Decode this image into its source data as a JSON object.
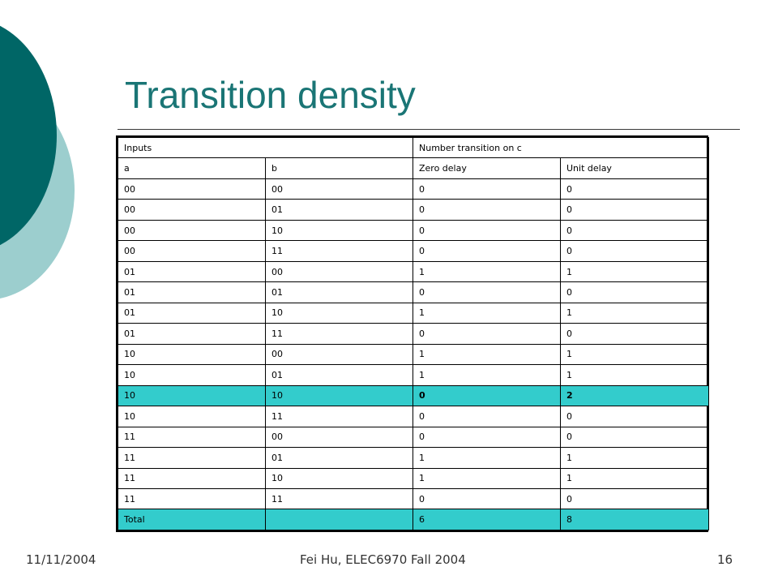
{
  "slide": {
    "title": "Transition density",
    "footer": {
      "date": "11/11/2004",
      "center": "Fei Hu, ELEC6970 Fall 2004",
      "page": "16"
    },
    "colors": {
      "accent_dark": "#006666",
      "accent_light": "#9ccece",
      "title": "#1a7575",
      "highlight": "#33cccc"
    }
  },
  "table": {
    "header1": {
      "inputs": "Inputs",
      "transitions": "Number transition  on c"
    },
    "header2": {
      "a": "a",
      "b": "b",
      "zero": "Zero delay",
      "unit": "Unit  delay"
    },
    "rows": [
      {
        "a": "00",
        "b": "00",
        "zero": "0",
        "unit": "0",
        "highlight": false
      },
      {
        "a": "00",
        "b": "01",
        "zero": "0",
        "unit": "0",
        "highlight": false
      },
      {
        "a": "00",
        "b": "10",
        "zero": "0",
        "unit": "0",
        "highlight": false
      },
      {
        "a": "00",
        "b": "11",
        "zero": "0",
        "unit": "0",
        "highlight": false
      },
      {
        "a": "01",
        "b": "00",
        "zero": "1",
        "unit": "1",
        "highlight": false
      },
      {
        "a": "01",
        "b": "01",
        "zero": "0",
        "unit": "0",
        "highlight": false
      },
      {
        "a": "01",
        "b": "10",
        "zero": "1",
        "unit": "1",
        "highlight": false
      },
      {
        "a": "01",
        "b": "11",
        "zero": "0",
        "unit": "0",
        "highlight": false
      },
      {
        "a": "10",
        "b": "00",
        "zero": "1",
        "unit": "1",
        "highlight": false
      },
      {
        "a": "10",
        "b": "01",
        "zero": "1",
        "unit": "1",
        "highlight": false
      },
      {
        "a": "10",
        "b": "10",
        "zero": "0",
        "unit": "2",
        "highlight": true
      },
      {
        "a": "10",
        "b": "11",
        "zero": "0",
        "unit": "0",
        "highlight": false
      },
      {
        "a": "11",
        "b": "00",
        "zero": "0",
        "unit": "0",
        "highlight": false
      },
      {
        "a": "11",
        "b": "01",
        "zero": "1",
        "unit": "1",
        "highlight": false
      },
      {
        "a": "11",
        "b": "10",
        "zero": "1",
        "unit": "1",
        "highlight": false
      },
      {
        "a": "11",
        "b": "11",
        "zero": "0",
        "unit": "0",
        "highlight": false
      }
    ],
    "total": {
      "label": "Total",
      "b": "",
      "zero": "6",
      "unit": "8"
    }
  }
}
